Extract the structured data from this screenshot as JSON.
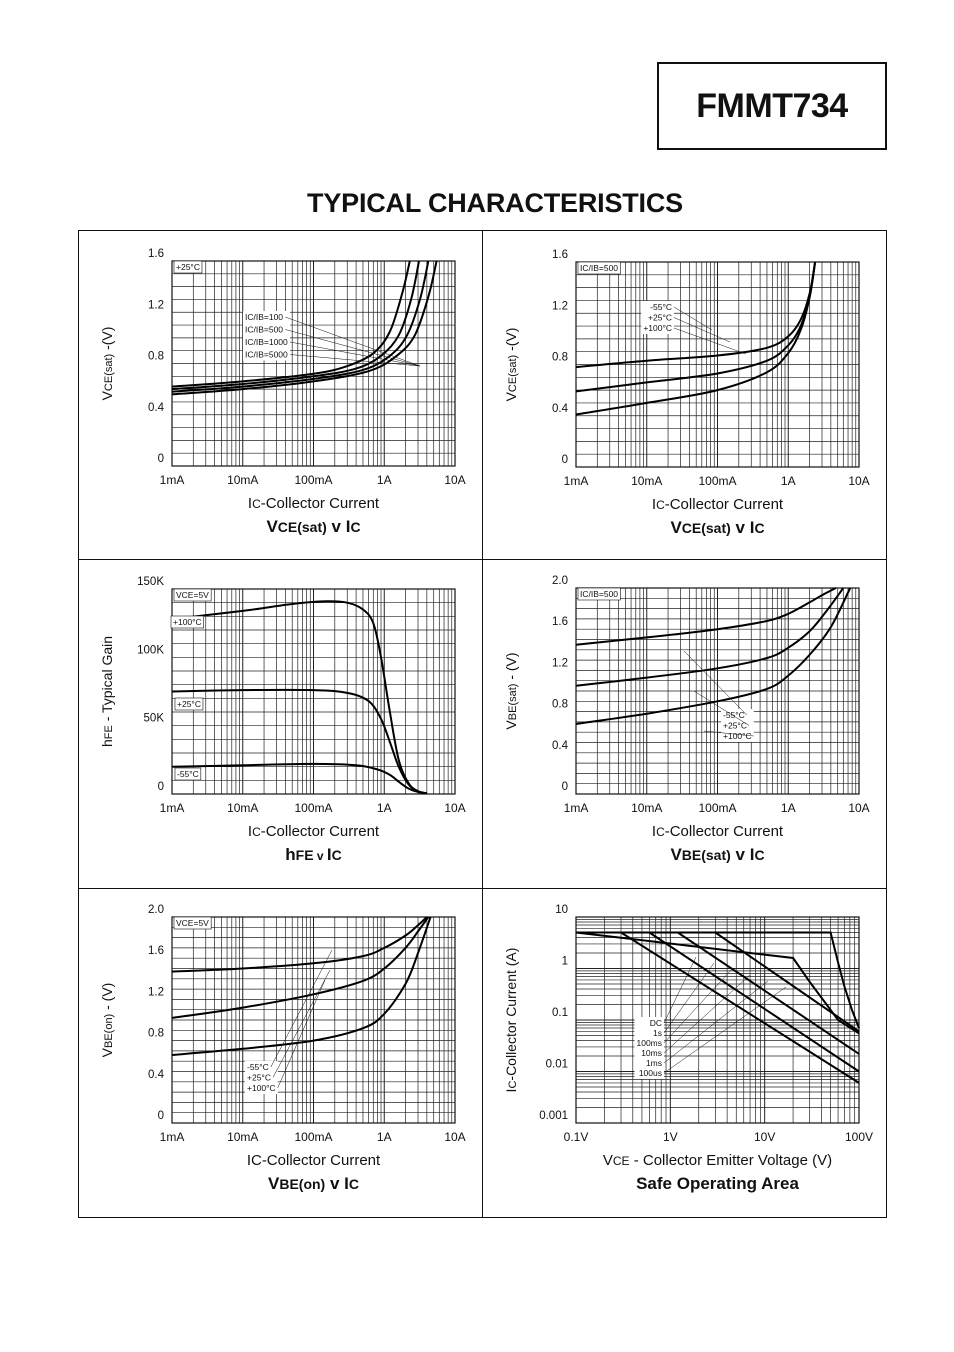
{
  "header": {
    "part_number": "FMMT734",
    "title": "TYPICAL CHARACTERISTICS"
  },
  "chart_data": [
    {
      "id": "c1",
      "type": "line",
      "title": "VCE(sat) v IC",
      "title_parts": [
        {
          "t": "V",
          "s": "m"
        },
        {
          "t": "CE(sat)",
          "s": "s"
        },
        {
          "t": " v ",
          "s": "m"
        },
        {
          "t": "I",
          "s": "m"
        },
        {
          "t": "C",
          "s": "s"
        }
      ],
      "xlabel": "IC-Collector Current",
      "xlabel_parts": [
        {
          "t": "I",
          "s": "m"
        },
        {
          "t": "C",
          "s": "s"
        },
        {
          "t": "-Collector Current",
          "s": "m"
        }
      ],
      "ylabel": "VCE(sat) -(V)",
      "ylabel_parts": [
        {
          "t": "V",
          "s": "m"
        },
        {
          "t": "CE(sat)",
          "s": "s"
        },
        {
          "t": " -(V)",
          "s": "m"
        }
      ],
      "xscale": "log",
      "xlim": [
        0.001,
        10
      ],
      "xticks": [
        {
          "v": 0.001,
          "l": "1mA"
        },
        {
          "v": 0.01,
          "l": "10mA"
        },
        {
          "v": 0.1,
          "l": "100mA"
        },
        {
          "v": 1,
          "l": "1A"
        },
        {
          "v": 10,
          "l": "10A"
        }
      ],
      "ylim": [
        0,
        1.6
      ],
      "yticks": [
        {
          "v": 0,
          "l": "0"
        },
        {
          "v": 0.4,
          "l": "0.4"
        },
        {
          "v": 0.8,
          "l": "0.8"
        },
        {
          "v": 1.2,
          "l": "1.2"
        },
        {
          "v": 1.6,
          "l": "1.6"
        }
      ],
      "ygrid_step": 0.1,
      "grid": true,
      "annotations": [
        {
          "text": "+25°C",
          "pos": "top-left"
        }
      ],
      "legend": {
        "entries": [
          "IC/IB=100",
          "IC/IB=500",
          "IC/IB=1000",
          "IC/IB=5000"
        ]
      },
      "series": [
        {
          "x": [
            0.001,
            0.01,
            0.1,
            0.3,
            0.7,
            1.2,
            1.8,
            2.3
          ],
          "y": [
            0.62,
            0.66,
            0.72,
            0.78,
            0.88,
            1.05,
            1.35,
            1.6
          ]
        },
        {
          "x": [
            0.001,
            0.01,
            0.1,
            0.4,
            0.9,
            1.6,
            2.4,
            3.1
          ],
          "y": [
            0.6,
            0.64,
            0.7,
            0.76,
            0.86,
            1.02,
            1.3,
            1.6
          ]
        },
        {
          "x": [
            0.001,
            0.01,
            0.1,
            0.5,
            1.2,
            2.1,
            3.2,
            4.2
          ],
          "y": [
            0.58,
            0.62,
            0.68,
            0.75,
            0.86,
            1.02,
            1.3,
            1.6
          ]
        },
        {
          "x": [
            0.001,
            0.01,
            0.1,
            0.6,
            1.5,
            2.7,
            4.2,
            5.5
          ],
          "y": [
            0.56,
            0.6,
            0.66,
            0.74,
            0.86,
            1.02,
            1.32,
            1.6
          ]
        }
      ]
    },
    {
      "id": "c2",
      "type": "line",
      "title": "VCE(sat) v IC",
      "title_parts": [
        {
          "t": "V",
          "s": "m"
        },
        {
          "t": "CE(sat)",
          "s": "s"
        },
        {
          "t": " v ",
          "s": "m"
        },
        {
          "t": "I",
          "s": "m"
        },
        {
          "t": "C",
          "s": "s"
        }
      ],
      "xlabel": "IC-Collector Current",
      "xlabel_parts": [
        {
          "t": "I",
          "s": "m"
        },
        {
          "t": "C",
          "s": "s"
        },
        {
          "t": "-Collector Current",
          "s": "m"
        }
      ],
      "ylabel": "VCE(sat) -(V)",
      "ylabel_parts": [
        {
          "t": "V",
          "s": "m"
        },
        {
          "t": "CE(sat)",
          "s": "s"
        },
        {
          "t": " -(V)",
          "s": "m"
        }
      ],
      "xscale": "log",
      "xlim": [
        0.001,
        10
      ],
      "xticks": [
        {
          "v": 0.001,
          "l": "1mA"
        },
        {
          "v": 0.01,
          "l": "10mA"
        },
        {
          "v": 0.1,
          "l": "100mA"
        },
        {
          "v": 1,
          "l": "1A"
        },
        {
          "v": 10,
          "l": "10A"
        }
      ],
      "ylim": [
        0,
        1.6
      ],
      "yticks": [
        {
          "v": 0,
          "l": "0"
        },
        {
          "v": 0.4,
          "l": "0.4"
        },
        {
          "v": 0.8,
          "l": "0.8"
        },
        {
          "v": 1.2,
          "l": "1.2"
        },
        {
          "v": 1.6,
          "l": "1.6"
        }
      ],
      "ygrid_step": 0.1,
      "grid": true,
      "annotations": [
        {
          "text": "IC/IB=500",
          "pos": "top-left"
        }
      ],
      "legend": {
        "entries": [
          "-55°C",
          "+25°C",
          "+100°C"
        ]
      },
      "series": [
        {
          "x": [
            0.001,
            0.01,
            0.1,
            0.5,
            1,
            1.5,
            2,
            2.4
          ],
          "y": [
            0.78,
            0.83,
            0.87,
            0.93,
            1.02,
            1.15,
            1.35,
            1.6
          ]
        },
        {
          "x": [
            0.001,
            0.01,
            0.1,
            0.5,
            1,
            1.5,
            2,
            2.4
          ],
          "y": [
            0.59,
            0.66,
            0.73,
            0.83,
            0.95,
            1.1,
            1.33,
            1.6
          ]
        },
        {
          "x": [
            0.001,
            0.01,
            0.1,
            0.5,
            1,
            1.5,
            2,
            2.4
          ],
          "y": [
            0.41,
            0.5,
            0.6,
            0.74,
            0.89,
            1.07,
            1.32,
            1.6
          ]
        }
      ]
    },
    {
      "id": "c3",
      "type": "line",
      "title": "hFE v IC",
      "title_parts": [
        {
          "t": "h",
          "s": "m"
        },
        {
          "t": "FE",
          "s": "s"
        },
        {
          "t": " v ",
          "s": "v"
        },
        {
          "t": "I",
          "s": "m"
        },
        {
          "t": "C",
          "s": "s"
        }
      ],
      "xlabel": "IC-Collector Current",
      "xlabel_parts": [
        {
          "t": "I",
          "s": "m"
        },
        {
          "t": "C",
          "s": "s"
        },
        {
          "t": "-Collector Current",
          "s": "m"
        }
      ],
      "ylabel": "hFE - Typical Gain",
      "ylabel_parts": [
        {
          "t": "h",
          "s": "m"
        },
        {
          "t": "FE",
          "s": "s"
        },
        {
          "t": " - Typical Gain",
          "s": "m"
        }
      ],
      "xscale": "log",
      "xlim": [
        0.001,
        10
      ],
      "xticks": [
        {
          "v": 0.001,
          "l": "1mA"
        },
        {
          "v": 0.01,
          "l": "10mA"
        },
        {
          "v": 0.1,
          "l": "100mA"
        },
        {
          "v": 1,
          "l": "1A"
        },
        {
          "v": 10,
          "l": "10A"
        }
      ],
      "ylim": [
        0,
        150000
      ],
      "yticks": [
        {
          "v": 0,
          "l": "0"
        },
        {
          "v": 50000,
          "l": "50K"
        },
        {
          "v": 100000,
          "l": "100K"
        },
        {
          "v": 150000,
          "l": "150K"
        }
      ],
      "ygrid_step": 10000,
      "grid": true,
      "annotations": [
        {
          "text": "VCE=5V",
          "pos": "top-left"
        },
        {
          "text": "+100°C",
          "pos": "curve"
        },
        {
          "text": "+25°C",
          "pos": "curve"
        },
        {
          "text": "-55°C",
          "pos": "curve"
        }
      ],
      "series": [
        {
          "name": "+100°C",
          "x": [
            0.001,
            0.01,
            0.05,
            0.15,
            0.3,
            0.5,
            0.7,
            0.9,
            1.2,
            1.6,
            2.2,
            3,
            4
          ],
          "y": [
            128000,
            134000,
            139000,
            141000,
            140000,
            135000,
            125000,
            100000,
            60000,
            25000,
            8000,
            2000,
            500
          ]
        },
        {
          "name": "+25°C",
          "x": [
            0.001,
            0.01,
            0.1,
            0.3,
            0.6,
            0.9,
            1.2,
            1.6,
            2.2,
            3,
            4
          ],
          "y": [
            75000,
            76000,
            76000,
            74000,
            68000,
            55000,
            38000,
            20000,
            7000,
            2000,
            500
          ]
        },
        {
          "name": "-55°C",
          "x": [
            0.001,
            0.01,
            0.1,
            0.4,
            0.8,
            1.2,
            1.6,
            2.2,
            3,
            4
          ],
          "y": [
            20000,
            21000,
            22000,
            21000,
            18000,
            14000,
            9000,
            4000,
            1500,
            500
          ]
        }
      ]
    },
    {
      "id": "c4",
      "type": "line",
      "title": "VBE(sat) v IC",
      "title_parts": [
        {
          "t": "V",
          "s": "m"
        },
        {
          "t": "BE(sat)",
          "s": "s"
        },
        {
          "t": " v ",
          "s": "m"
        },
        {
          "t": "I",
          "s": "m"
        },
        {
          "t": "C",
          "s": "s"
        }
      ],
      "xlabel": "IC-Collector Current",
      "xlabel_parts": [
        {
          "t": "I",
          "s": "m"
        },
        {
          "t": "C",
          "s": "s"
        },
        {
          "t": "-Collector Current",
          "s": "m"
        }
      ],
      "ylabel": "VBE(sat) - (V)",
      "ylabel_parts": [
        {
          "t": "V",
          "s": "m"
        },
        {
          "t": "BE(sat)",
          "s": "s"
        },
        {
          "t": " - (V)",
          "s": "m"
        }
      ],
      "xscale": "log",
      "xlim": [
        0.001,
        10
      ],
      "xticks": [
        {
          "v": 0.001,
          "l": "1mA"
        },
        {
          "v": 0.01,
          "l": "10mA"
        },
        {
          "v": 0.1,
          "l": "100mA"
        },
        {
          "v": 1,
          "l": "1A"
        },
        {
          "v": 10,
          "l": "10A"
        }
      ],
      "ylim": [
        0,
        2.0
      ],
      "yticks": [
        {
          "v": 0,
          "l": "0"
        },
        {
          "v": 0.4,
          "l": "0.4"
        },
        {
          "v": 0.8,
          "l": "0.8"
        },
        {
          "v": 1.2,
          "l": "1.2"
        },
        {
          "v": 1.6,
          "l": "1.6"
        },
        {
          "v": 2.0,
          "l": "2.0"
        }
      ],
      "ygrid_step": 0.1,
      "grid": true,
      "annotations": [
        {
          "text": "IC/IB=500",
          "pos": "top-left"
        }
      ],
      "legend": {
        "entries": [
          "-55°C",
          "+25°C",
          "+100°C"
        ]
      },
      "series": [
        {
          "x": [
            0.001,
            0.01,
            0.1,
            0.5,
            1,
            2,
            3,
            4.7
          ],
          "y": [
            1.45,
            1.52,
            1.6,
            1.68,
            1.75,
            1.86,
            1.93,
            2.0
          ]
        },
        {
          "x": [
            0.001,
            0.01,
            0.1,
            0.5,
            1,
            2,
            3.5,
            6
          ],
          "y": [
            1.05,
            1.13,
            1.22,
            1.32,
            1.42,
            1.58,
            1.78,
            2.0
          ]
        },
        {
          "x": [
            0.001,
            0.01,
            0.1,
            0.5,
            1,
            2,
            4,
            7.5
          ],
          "y": [
            0.68,
            0.78,
            0.9,
            1.02,
            1.15,
            1.35,
            1.62,
            2.0
          ]
        }
      ]
    },
    {
      "id": "c5",
      "type": "line",
      "title": "VBE(on) v IC",
      "title_parts": [
        {
          "t": "V",
          "s": "m"
        },
        {
          "t": "BE(on)",
          "s": "s"
        },
        {
          "t": " v ",
          "s": "m"
        },
        {
          "t": "I",
          "s": "m"
        },
        {
          "t": "C",
          "s": "s"
        }
      ],
      "xlabel": "IC-Collector Current",
      "xlabel_parts": [
        {
          "t": "IC-Collector Current",
          "s": "m"
        }
      ],
      "ylabel": "VBE(on) - (V)",
      "ylabel_parts": [
        {
          "t": "V",
          "s": "m"
        },
        {
          "t": "BE(on)",
          "s": "s"
        },
        {
          "t": " - (V)",
          "s": "m"
        }
      ],
      "xscale": "log",
      "xlim": [
        0.001,
        10
      ],
      "xticks": [
        {
          "v": 0.001,
          "l": "1mA"
        },
        {
          "v": 0.01,
          "l": "10mA"
        },
        {
          "v": 0.1,
          "l": "100mA"
        },
        {
          "v": 1,
          "l": "1A"
        },
        {
          "v": 10,
          "l": "10A"
        }
      ],
      "ylim": [
        0,
        2.0
      ],
      "yticks": [
        {
          "v": 0,
          "l": "0"
        },
        {
          "v": 0.4,
          "l": "0.4"
        },
        {
          "v": 0.8,
          "l": "0.8"
        },
        {
          "v": 1.2,
          "l": "1.2"
        },
        {
          "v": 1.6,
          "l": "1.6"
        },
        {
          "v": 2.0,
          "l": "2.0"
        }
      ],
      "ygrid_step": 0.1,
      "grid": true,
      "annotations": [
        {
          "text": "VCE=5V",
          "pos": "top-left"
        }
      ],
      "legend": {
        "entries": [
          "-55°C",
          "+25°C",
          "+100°C"
        ]
      },
      "series": [
        {
          "x": [
            0.001,
            0.01,
            0.1,
            0.5,
            1,
            2,
            3,
            4
          ],
          "y": [
            1.47,
            1.5,
            1.55,
            1.62,
            1.7,
            1.82,
            1.92,
            2.0
          ]
        },
        {
          "x": [
            0.001,
            0.01,
            0.1,
            0.5,
            1,
            2,
            3,
            4.2
          ],
          "y": [
            1.02,
            1.12,
            1.25,
            1.38,
            1.5,
            1.7,
            1.86,
            2.0
          ]
        },
        {
          "x": [
            0.001,
            0.01,
            0.1,
            0.5,
            1,
            2,
            3,
            4.5
          ],
          "y": [
            0.66,
            0.72,
            0.8,
            0.92,
            1.06,
            1.35,
            1.65,
            2.0
          ]
        }
      ]
    },
    {
      "id": "c6",
      "type": "line",
      "title": "Safe Operating Area",
      "title_parts": [
        {
          "t": "Safe Operating Area",
          "s": "m"
        }
      ],
      "xlabel": "VCE - Collector Emitter Voltage (V)",
      "xlabel_parts": [
        {
          "t": "V",
          "s": "m"
        },
        {
          "t": "CE",
          "s": "s"
        },
        {
          "t": " - Collector Emitter Voltage (V)",
          "s": "m"
        }
      ],
      "ylabel": "IC-Collector Current (A)",
      "ylabel_parts": [
        {
          "t": "I",
          "s": "m"
        },
        {
          "t": "C",
          "s": "s"
        },
        {
          "t": "-Collector Current (A)",
          "s": "m"
        }
      ],
      "xscale": "log",
      "xlim": [
        0.1,
        100
      ],
      "xticks": [
        {
          "v": 0.1,
          "l": "0.1V"
        },
        {
          "v": 1,
          "l": "1V"
        },
        {
          "v": 10,
          "l": "10V"
        },
        {
          "v": 100,
          "l": "100V"
        }
      ],
      "yscale": "log",
      "ylim": [
        0.001,
        10
      ],
      "yticks": [
        {
          "v": 0.001,
          "l": "0.001"
        },
        {
          "v": 0.01,
          "l": "0.01"
        },
        {
          "v": 0.1,
          "l": "0.1"
        },
        {
          "v": 1,
          "l": "1"
        },
        {
          "v": 10,
          "l": "10"
        }
      ],
      "grid": true,
      "legend": {
        "entries": [
          "DC",
          "1s",
          "100ms",
          "10ms",
          "1ms",
          "100us"
        ]
      },
      "series": [
        {
          "name": "100us",
          "x": [
            0.1,
            50,
            60,
            70,
            85,
            100
          ],
          "y": [
            5,
            5,
            1.3,
            0.45,
            0.15,
            0.07
          ]
        },
        {
          "name": "1ms",
          "x": [
            0.1,
            20,
            30,
            60,
            100
          ],
          "y": [
            5,
            1.6,
            0.55,
            0.1,
            0.055
          ]
        },
        {
          "name": "10ms",
          "x": [
            0.1,
            3,
            100
          ],
          "y": [
            5,
            5,
            0.06
          ]
        },
        {
          "name": "100ms",
          "x": [
            0.1,
            1.2,
            100
          ],
          "y": [
            5,
            5,
            0.022
          ]
        },
        {
          "name": "1s",
          "x": [
            0.1,
            0.6,
            100
          ],
          "y": [
            5,
            5,
            0.01
          ]
        },
        {
          "name": "DC",
          "x": [
            0.1,
            0.3,
            100
          ],
          "y": [
            5,
            5,
            0.006
          ]
        }
      ]
    }
  ]
}
